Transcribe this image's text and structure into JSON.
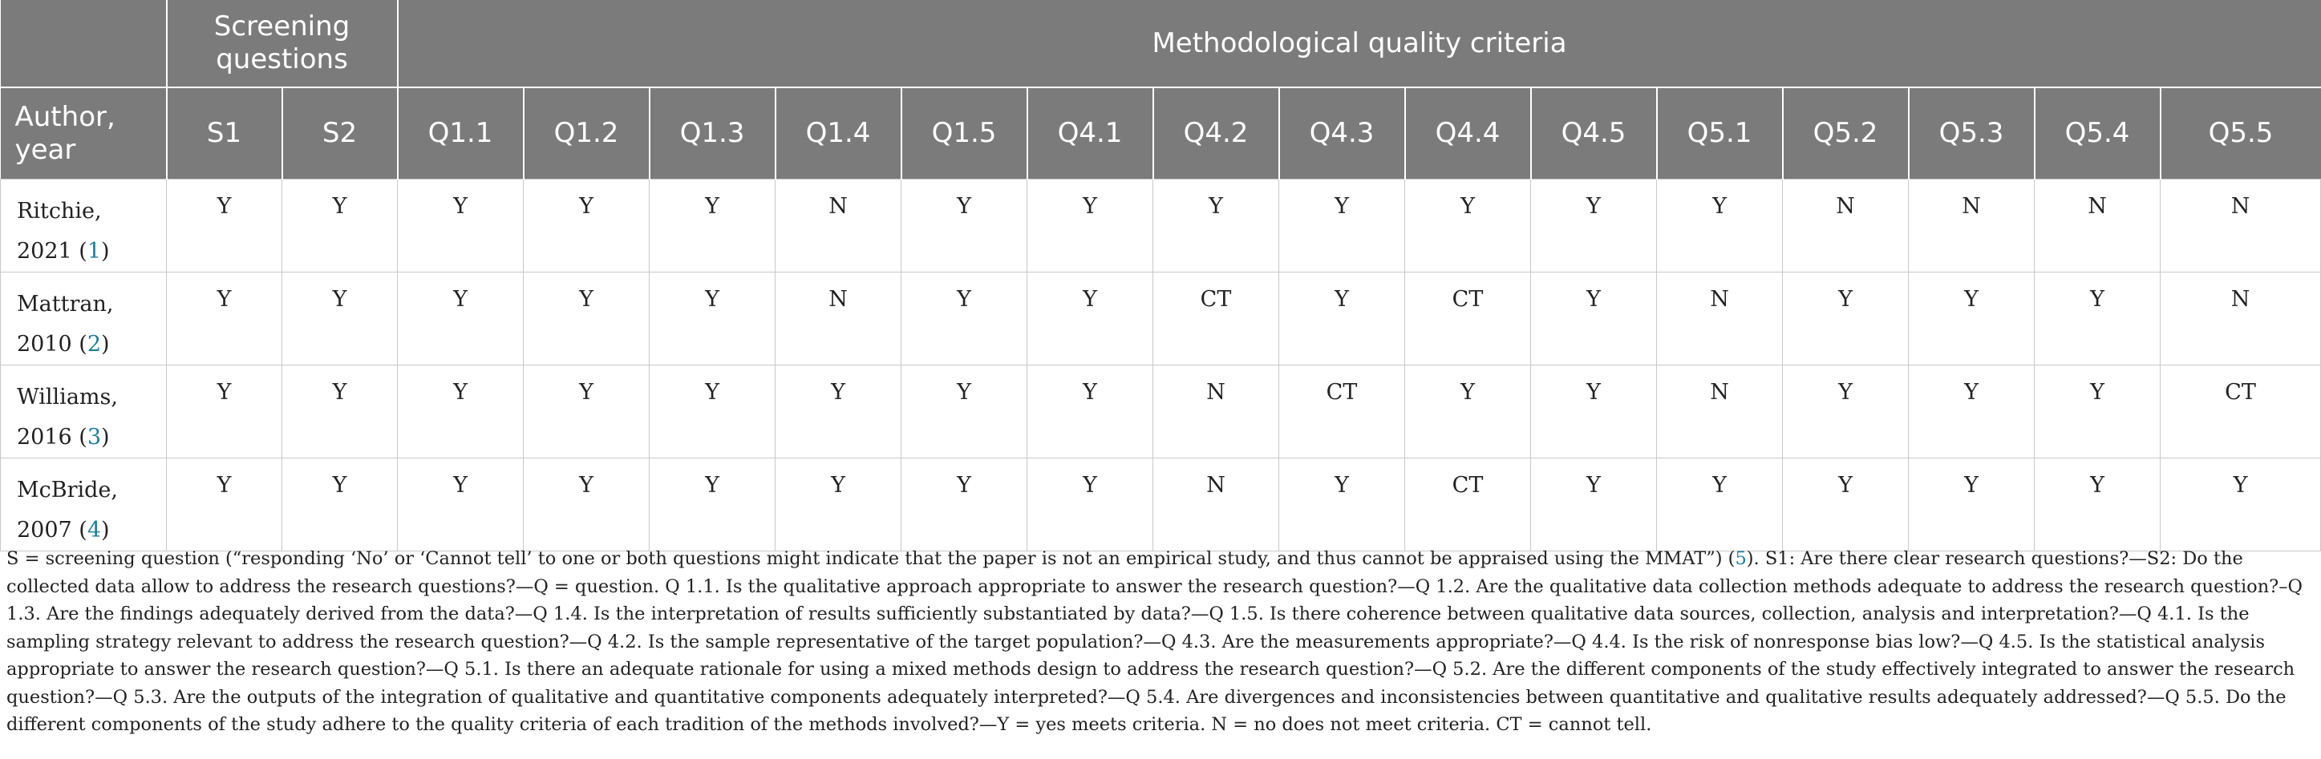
{
  "header": {
    "group1": "",
    "group2": "Screening questions",
    "group3": "Methodological quality criteria",
    "author_col": "Author, year"
  },
  "columns": [
    "S1",
    "S2",
    "Q1.1",
    "Q1.2",
    "Q1.3",
    "Q1.4",
    "Q1.5",
    "Q4.1",
    "Q4.2",
    "Q4.3",
    "Q4.4",
    "Q4.5",
    "Q5.1",
    "Q5.2",
    "Q5.3",
    "Q5.4",
    "Q5.5"
  ],
  "rows": [
    {
      "author": "Ritchie, 2021",
      "ref": "1",
      "values": [
        "Y",
        "Y",
        "Y",
        "Y",
        "Y",
        "N",
        "Y",
        "Y",
        "Y",
        "Y",
        "Y",
        "Y",
        "Y",
        "N",
        "N",
        "N",
        "N"
      ]
    },
    {
      "author": "Mattran, 2010",
      "ref": "2",
      "values": [
        "Y",
        "Y",
        "Y",
        "Y",
        "Y",
        "N",
        "Y",
        "Y",
        "CT",
        "Y",
        "CT",
        "Y",
        "N",
        "Y",
        "Y",
        "Y",
        "N"
      ]
    },
    {
      "author": "Williams, 2016",
      "ref": "3",
      "values": [
        "Y",
        "Y",
        "Y",
        "Y",
        "Y",
        "Y",
        "Y",
        "Y",
        "N",
        "CT",
        "Y",
        "Y",
        "N",
        "Y",
        "Y",
        "Y",
        "CT"
      ]
    },
    {
      "author": "McBride, 2007",
      "ref": "4",
      "values": [
        "Y",
        "Y",
        "Y",
        "Y",
        "Y",
        "Y",
        "Y",
        "Y",
        "N",
        "Y",
        "CT",
        "Y",
        "Y",
        "Y",
        "Y",
        "Y",
        "Y"
      ]
    }
  ],
  "footnote": {
    "part1": "S = screening question (“responding ‘No’ or ‘Cannot tell’ to one or both questions might indicate that the paper is not an empirical study, and thus cannot be appraised using the MMAT”) (",
    "ref": "5",
    "part2": "). S1: Are there clear research questions?—S2: Do the collected data allow to address the research questions?—Q = question. Q 1.1. Is the qualitative approach appropriate to answer the research question?—Q 1.2. Are the qualitative data collection methods adequate to address the research question?–Q 1.3. Are the findings adequately derived from the data?—Q 1.4. Is the interpretation of results sufficiently substantiated by data?—Q 1.5. Is there coherence between qualitative data sources, collection, analysis and interpretation?—Q 4.1. Is the sampling strategy relevant to address the research question?—Q 4.2. Is the sample representative of the target population?—Q 4.3. Are the measurements appropriate?—Q 4.4. Is the risk of nonresponse bias low?—Q 4.5. Is the statistical analysis appropriate to answer the research question?—Q 5.1. Is there an adequate rationale for using a mixed methods design to address the research question?—Q 5.2. Are the different components of the study effectively integrated to answer the research question?—Q 5.3. Are the outputs of the integration of qualitative and quantitative components adequately interpreted?—Q 5.4. Are divergences and inconsistencies between quantitative and qualitative results adequately addressed?—Q 5.5. Do the different components of the study adhere to the quality criteria of each tradition of the methods involved?—Y = yes meets criteria. N = no does not meet criteria. CT = cannot tell."
  }
}
